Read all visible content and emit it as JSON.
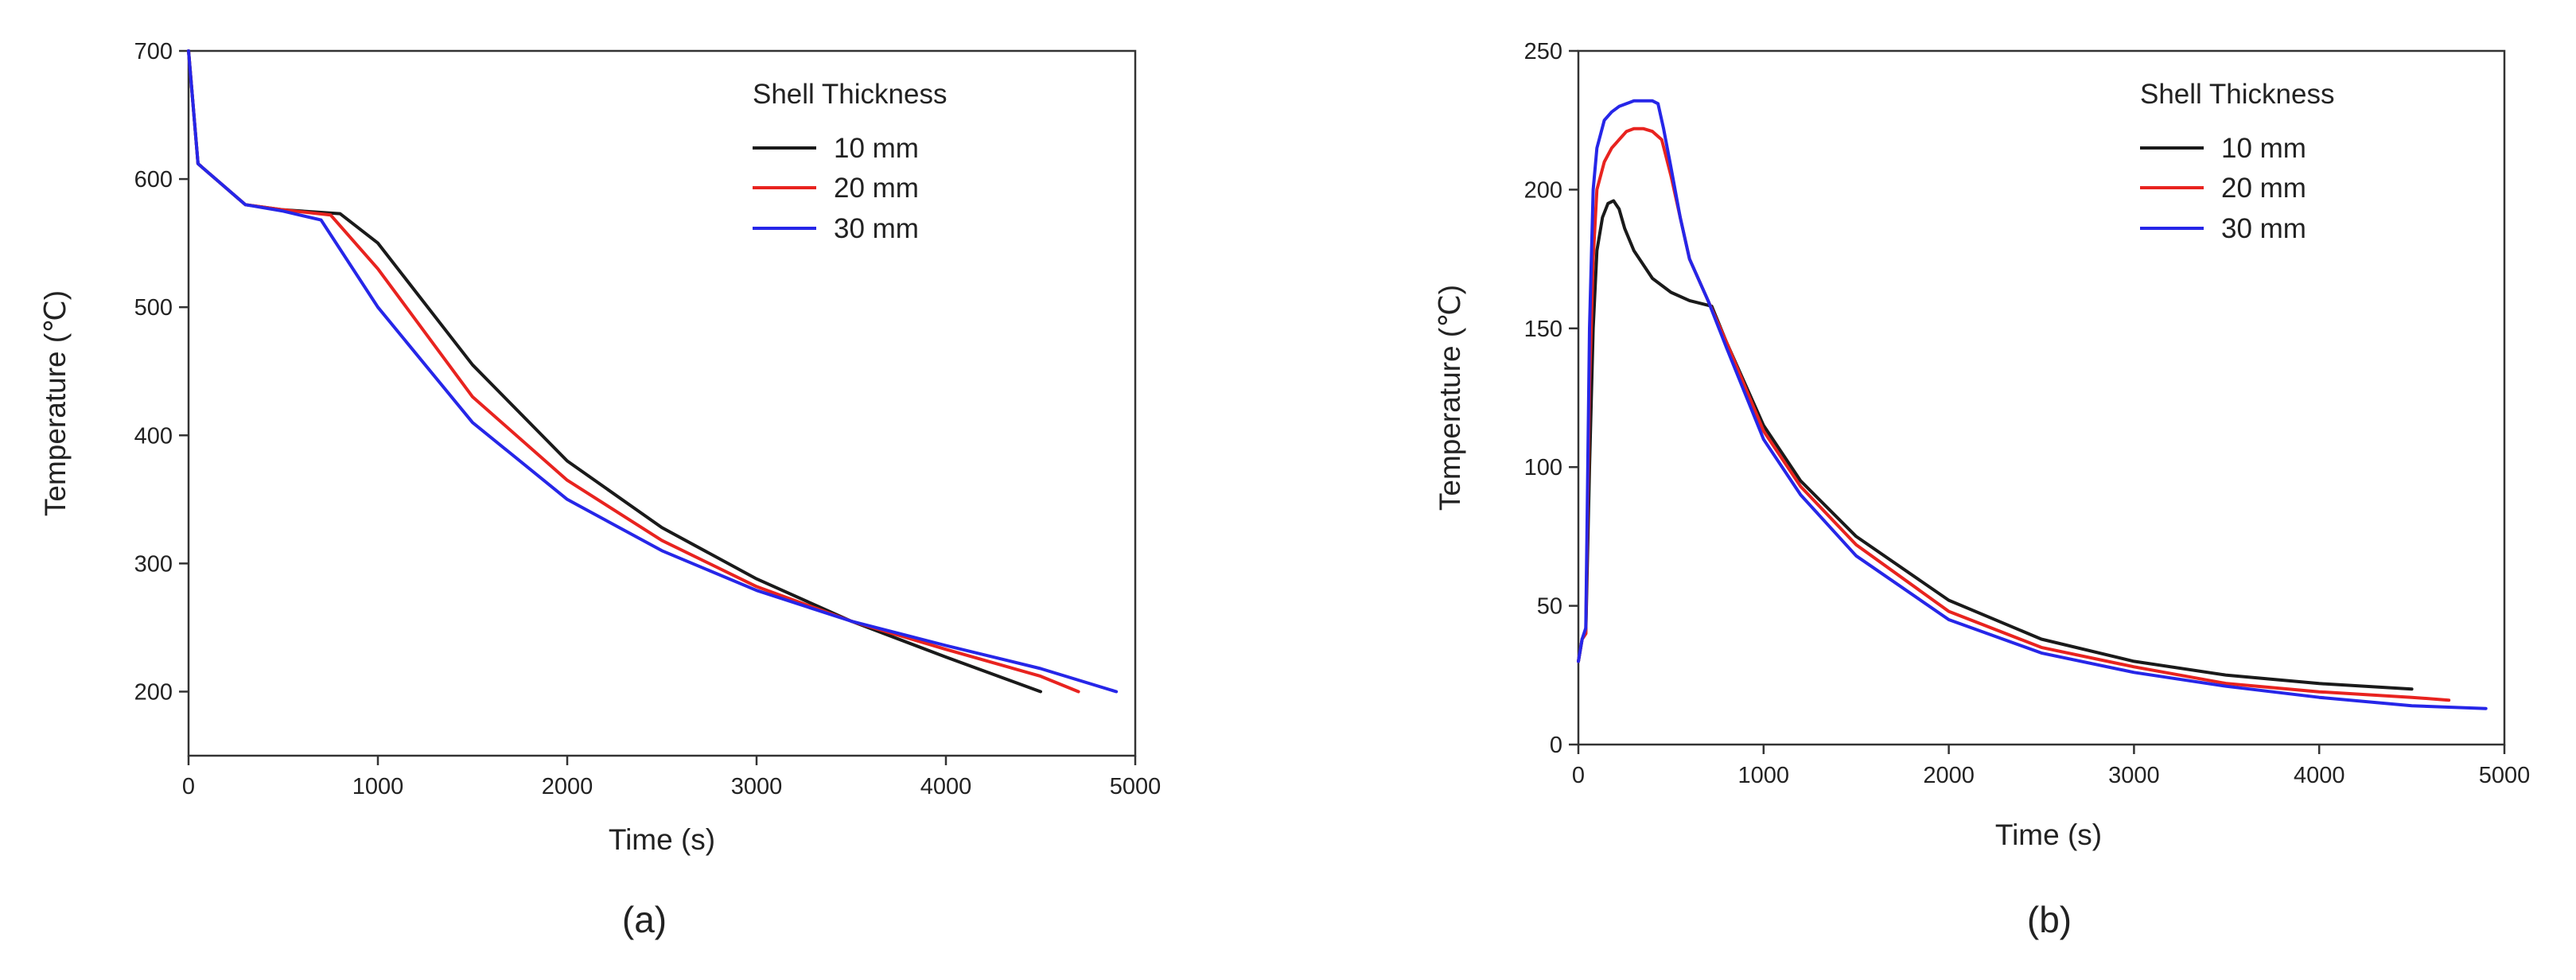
{
  "chart_data": [
    {
      "type": "line",
      "panel_label": "(a)",
      "title": "",
      "xlabel": "Time (s)",
      "ylabel": "Temperature (℃)",
      "xlim": [
        0,
        5000
      ],
      "ylim": [
        150,
        700
      ],
      "xticks": [
        0,
        1000,
        2000,
        3000,
        4000,
        5000
      ],
      "yticks": [
        200,
        300,
        400,
        500,
        600,
        700
      ],
      "grid": false,
      "legend": {
        "title": "Shell Thickness",
        "placement": "top-right"
      },
      "series": [
        {
          "name": "10 mm",
          "color": "#1a1a1a",
          "x": [
            0,
            50,
            300,
            500,
            800,
            1000,
            1500,
            2000,
            2500,
            3000,
            3500,
            4000,
            4500
          ],
          "y": [
            700,
            612,
            580,
            576,
            573,
            550,
            455,
            380,
            328,
            288,
            255,
            227,
            200
          ]
        },
        {
          "name": "20 mm",
          "color": "#e8231f",
          "x": [
            0,
            50,
            300,
            500,
            750,
            1000,
            1500,
            2000,
            2500,
            3000,
            3500,
            4000,
            4500,
            4700
          ],
          "y": [
            700,
            612,
            580,
            576,
            572,
            530,
            430,
            365,
            318,
            282,
            255,
            233,
            212,
            200
          ]
        },
        {
          "name": "30 mm",
          "color": "#2626e8",
          "x": [
            0,
            50,
            300,
            500,
            700,
            1000,
            1500,
            2000,
            2500,
            3000,
            3500,
            4000,
            4500,
            4900
          ],
          "y": [
            700,
            612,
            580,
            575,
            568,
            500,
            410,
            350,
            310,
            279,
            255,
            236,
            218,
            200
          ]
        }
      ]
    },
    {
      "type": "line",
      "panel_label": "(b)",
      "title": "",
      "xlabel": "Time (s)",
      "ylabel": "Temperature (℃)",
      "xlim": [
        0,
        5000
      ],
      "ylim": [
        0,
        250
      ],
      "xticks": [
        0,
        1000,
        2000,
        3000,
        4000,
        5000
      ],
      "yticks": [
        0,
        50,
        100,
        150,
        200,
        250
      ],
      "grid": false,
      "legend": {
        "title": "Shell Thickness",
        "placement": "top-right"
      },
      "series": [
        {
          "name": "10 mm",
          "color": "#1a1a1a",
          "x": [
            0,
            20,
            40,
            60,
            80,
            100,
            130,
            160,
            190,
            220,
            250,
            300,
            400,
            500,
            600,
            720,
            800,
            1000,
            1200,
            1500,
            2000,
            2500,
            3000,
            3500,
            4000,
            4500
          ],
          "y": [
            30,
            38,
            40,
            100,
            150,
            178,
            190,
            195,
            196,
            193,
            186,
            178,
            168,
            163,
            160,
            158,
            145,
            115,
            95,
            75,
            52,
            38,
            30,
            25,
            22,
            20
          ]
        },
        {
          "name": "20 mm",
          "color": "#e8231f",
          "x": [
            0,
            20,
            40,
            60,
            80,
            100,
            140,
            180,
            220,
            260,
            300,
            350,
            400,
            450,
            500,
            550,
            600,
            700,
            800,
            1000,
            1200,
            1500,
            2000,
            2500,
            3000,
            3500,
            4000,
            4500,
            4700
          ],
          "y": [
            30,
            38,
            40,
            130,
            175,
            200,
            210,
            215,
            218,
            221,
            222,
            222,
            221,
            218,
            205,
            190,
            175,
            160,
            145,
            113,
            93,
            72,
            48,
            35,
            28,
            22,
            19,
            17,
            16
          ]
        },
        {
          "name": "30 mm",
          "color": "#2626e8",
          "x": [
            0,
            20,
            40,
            60,
            80,
            100,
            140,
            180,
            220,
            260,
            300,
            350,
            400,
            430,
            460,
            500,
            550,
            600,
            700,
            800,
            1000,
            1200,
            1500,
            2000,
            2500,
            3000,
            3500,
            4000,
            4500,
            4900
          ],
          "y": [
            30,
            38,
            42,
            150,
            200,
            215,
            225,
            228,
            230,
            231,
            232,
            232,
            232,
            231,
            222,
            208,
            190,
            175,
            160,
            143,
            110,
            90,
            68,
            45,
            33,
            26,
            21,
            17,
            14,
            13
          ]
        }
      ]
    }
  ]
}
